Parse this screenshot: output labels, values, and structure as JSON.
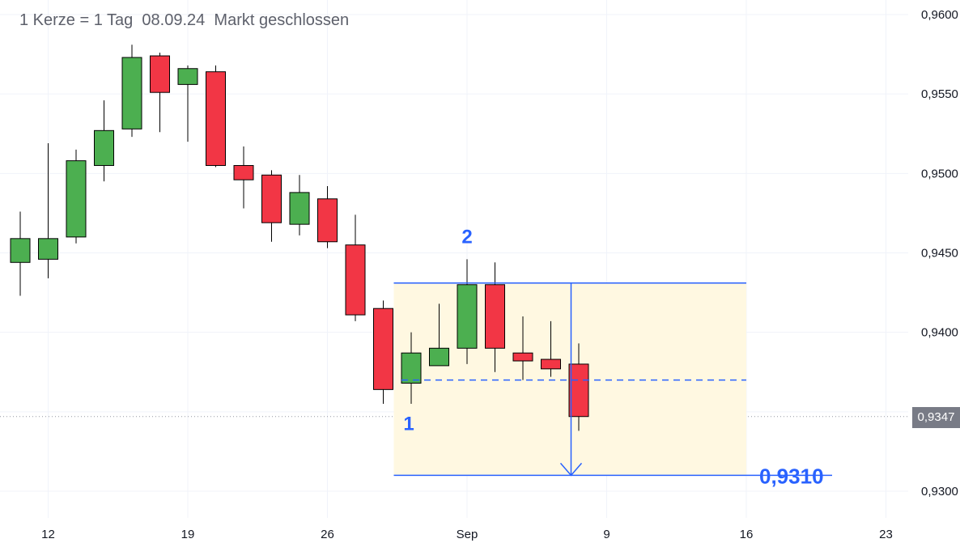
{
  "header": {
    "candle_info": "1 Kerze = 1 Tag",
    "date": "08.09.24",
    "status": "Markt geschlossen"
  },
  "colors": {
    "up": "#4caf50",
    "down": "#f23645",
    "wick": "#000000",
    "annotation": "#2962ff",
    "zone": "#fff8e1",
    "current_price_line": "#9598a1",
    "grid": "#f0f3fa",
    "axis_text": "#131722"
  },
  "chart_data": {
    "type": "candlestick",
    "ylim": [
      0.9283,
      0.9603
    ],
    "y_ticks": [
      {
        "value": 0.93,
        "label": "0,9300"
      },
      {
        "value": 0.935,
        "label": "0,9350"
      },
      {
        "value": 0.94,
        "label": "0,9400"
      },
      {
        "value": 0.945,
        "label": "0,9450"
      },
      {
        "value": 0.95,
        "label": "0,9500"
      },
      {
        "value": 0.955,
        "label": "0,9550"
      },
      {
        "value": 0.96,
        "label": "0,9600"
      }
    ],
    "x_ticks": [
      {
        "date": "2024-08-12",
        "label": "12"
      },
      {
        "date": "2024-08-19",
        "label": "19"
      },
      {
        "date": "2024-08-26",
        "label": "26"
      },
      {
        "date": "2024-09-01",
        "label": "Sep"
      },
      {
        "date": "2024-09-09",
        "label": "9"
      },
      {
        "date": "2024-09-16",
        "label": "16"
      },
      {
        "date": "2024-09-23",
        "label": "23"
      }
    ],
    "candles": [
      {
        "date": "2024-08-09",
        "open": 0.9444,
        "high": 0.9476,
        "low": 0.9423,
        "close": 0.9459
      },
      {
        "date": "2024-08-12",
        "open": 0.9446,
        "high": 0.9519,
        "low": 0.9434,
        "close": 0.9459
      },
      {
        "date": "2024-08-13",
        "open": 0.946,
        "high": 0.9515,
        "low": 0.9456,
        "close": 0.9508
      },
      {
        "date": "2024-08-14",
        "open": 0.9505,
        "high": 0.9546,
        "low": 0.9495,
        "close": 0.9527
      },
      {
        "date": "2024-08-15",
        "open": 0.9528,
        "high": 0.9581,
        "low": 0.9523,
        "close": 0.9573
      },
      {
        "date": "2024-08-16",
        "open": 0.9574,
        "high": 0.9576,
        "low": 0.9526,
        "close": 0.9551
      },
      {
        "date": "2024-08-19",
        "open": 0.9556,
        "high": 0.9568,
        "low": 0.952,
        "close": 0.9566
      },
      {
        "date": "2024-08-20",
        "open": 0.9564,
        "high": 0.9568,
        "low": 0.9504,
        "close": 0.9505
      },
      {
        "date": "2024-08-21",
        "open": 0.9505,
        "high": 0.9517,
        "low": 0.9478,
        "close": 0.9496
      },
      {
        "date": "2024-08-22",
        "open": 0.9499,
        "high": 0.9502,
        "low": 0.9457,
        "close": 0.9469
      },
      {
        "date": "2024-08-23",
        "open": 0.9468,
        "high": 0.9499,
        "low": 0.9461,
        "close": 0.9488
      },
      {
        "date": "2024-08-26",
        "open": 0.9484,
        "high": 0.9492,
        "low": 0.9453,
        "close": 0.9457
      },
      {
        "date": "2024-08-27",
        "open": 0.9455,
        "high": 0.9474,
        "low": 0.9407,
        "close": 0.9411
      },
      {
        "date": "2024-08-28",
        "open": 0.9415,
        "high": 0.942,
        "low": 0.9355,
        "close": 0.9364
      },
      {
        "date": "2024-08-29",
        "open": 0.9368,
        "high": 0.94,
        "low": 0.9355,
        "close": 0.9387
      },
      {
        "date": "2024-08-30",
        "open": 0.9379,
        "high": 0.9418,
        "low": 0.9379,
        "close": 0.939
      },
      {
        "date": "2024-09-02",
        "open": 0.939,
        "high": 0.9446,
        "low": 0.938,
        "close": 0.943
      },
      {
        "date": "2024-09-03",
        "open": 0.943,
        "high": 0.9444,
        "low": 0.9375,
        "close": 0.939
      },
      {
        "date": "2024-09-04",
        "open": 0.9387,
        "high": 0.941,
        "low": 0.937,
        "close": 0.9382
      },
      {
        "date": "2024-09-05",
        "open": 0.9383,
        "high": 0.9407,
        "low": 0.9372,
        "close": 0.9377
      },
      {
        "date": "2024-09-06",
        "open": 0.938,
        "high": 0.9393,
        "low": 0.9338,
        "close": 0.9347
      }
    ],
    "current_price": {
      "value": 0.9347,
      "label": "0,9347"
    },
    "annotations": {
      "zone": {
        "from": "2024-08-28",
        "to": "2024-09-16",
        "top": 0.9431,
        "bottom": 0.931
      },
      "resistance": {
        "value": 0.9431
      },
      "midline": {
        "value": 0.937
      },
      "target": {
        "value": 0.931,
        "label": "0,9310"
      },
      "arrow": {
        "date": "2024-09-05",
        "from": 0.9431,
        "to": 0.931
      },
      "points": [
        {
          "label": "1",
          "date": "2024-08-29",
          "value": 0.9347
        },
        {
          "label": "2",
          "date": "2024-09-02",
          "value": 0.9452
        }
      ]
    }
  }
}
